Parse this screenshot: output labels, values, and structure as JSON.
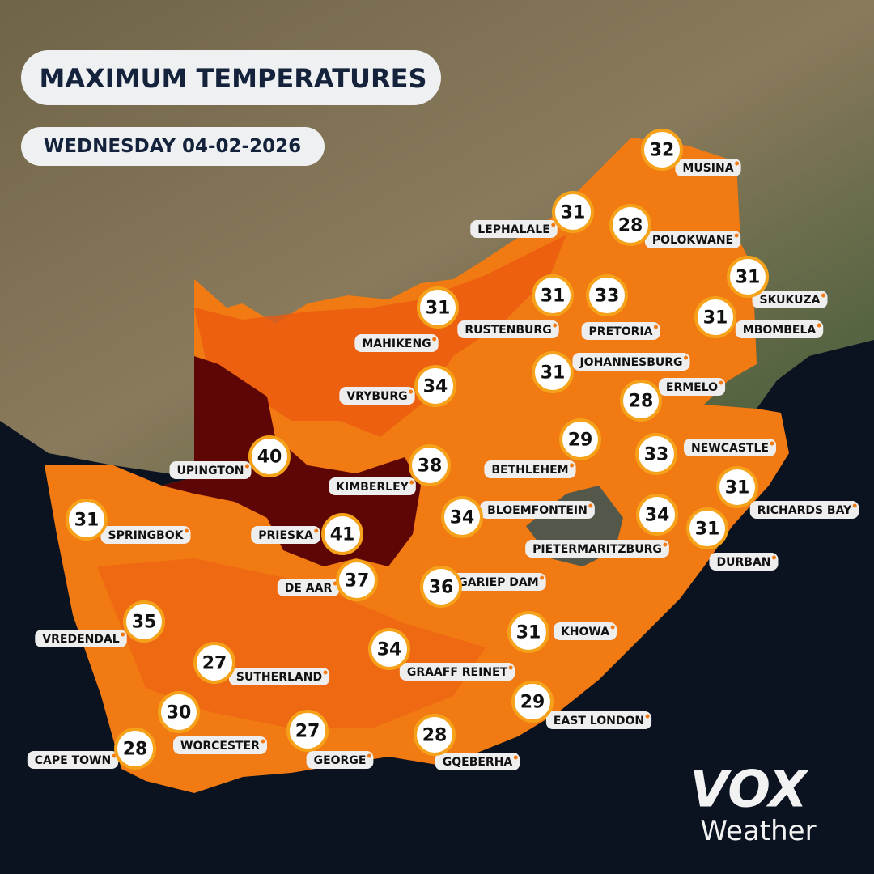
{
  "header": {
    "title": "MAXIMUM TEMPERATURES",
    "date": "WEDNESDAY 04-02-2026"
  },
  "cities": [
    {
      "name": "MUSINA",
      "temp": "32"
    },
    {
      "name": "LEPHALALE",
      "temp": "31"
    },
    {
      "name": "POLOKWANE",
      "temp": "28"
    },
    {
      "name": "SKUKUZA",
      "temp": "31"
    },
    {
      "name": "MBOMBELA",
      "temp": "31"
    },
    {
      "name": "MAHIKENG",
      "temp": "31"
    },
    {
      "name": "RUSTENBURG",
      "temp": "31"
    },
    {
      "name": "PRETORIA",
      "temp": "33"
    },
    {
      "name": "JOHANNESBURG",
      "temp": "31"
    },
    {
      "name": "ERMELO",
      "temp": "28"
    },
    {
      "name": "VRYBURG",
      "temp": "34"
    },
    {
      "name": "UPINGTON",
      "temp": "40"
    },
    {
      "name": "KIMBERLEY",
      "temp": "38"
    },
    {
      "name": "BETHLEHEM",
      "temp": "29"
    },
    {
      "name": "NEWCASTLE",
      "temp": "33"
    },
    {
      "name": "SPRINGBOK",
      "temp": "31"
    },
    {
      "name": "PRIESKA",
      "temp": "41"
    },
    {
      "name": "BLOEMFONTEIN",
      "temp": "34"
    },
    {
      "name": "PIETERMARITZBURG",
      "temp": "34"
    },
    {
      "name": "RICHARDS BAY",
      "temp": "31"
    },
    {
      "name": "DURBAN",
      "temp": "31"
    },
    {
      "name": "DE AAR",
      "temp": "37"
    },
    {
      "name": "GARIEP DAM",
      "temp": "36"
    },
    {
      "name": "VREDENDAL",
      "temp": "35"
    },
    {
      "name": "KHOWA",
      "temp": "31"
    },
    {
      "name": "SUTHERLAND",
      "temp": "27"
    },
    {
      "name": "GRAAFF REINET",
      "temp": "34"
    },
    {
      "name": "EAST LONDON",
      "temp": "29"
    },
    {
      "name": "WORCESTER",
      "temp": "30"
    },
    {
      "name": "CAPE TOWN",
      "temp": "28"
    },
    {
      "name": "GEORGE",
      "temp": "27"
    },
    {
      "name": "GQEBERHA",
      "temp": "28"
    }
  ],
  "logo": {
    "brand": "VOX",
    "sub": "Weather"
  }
}
